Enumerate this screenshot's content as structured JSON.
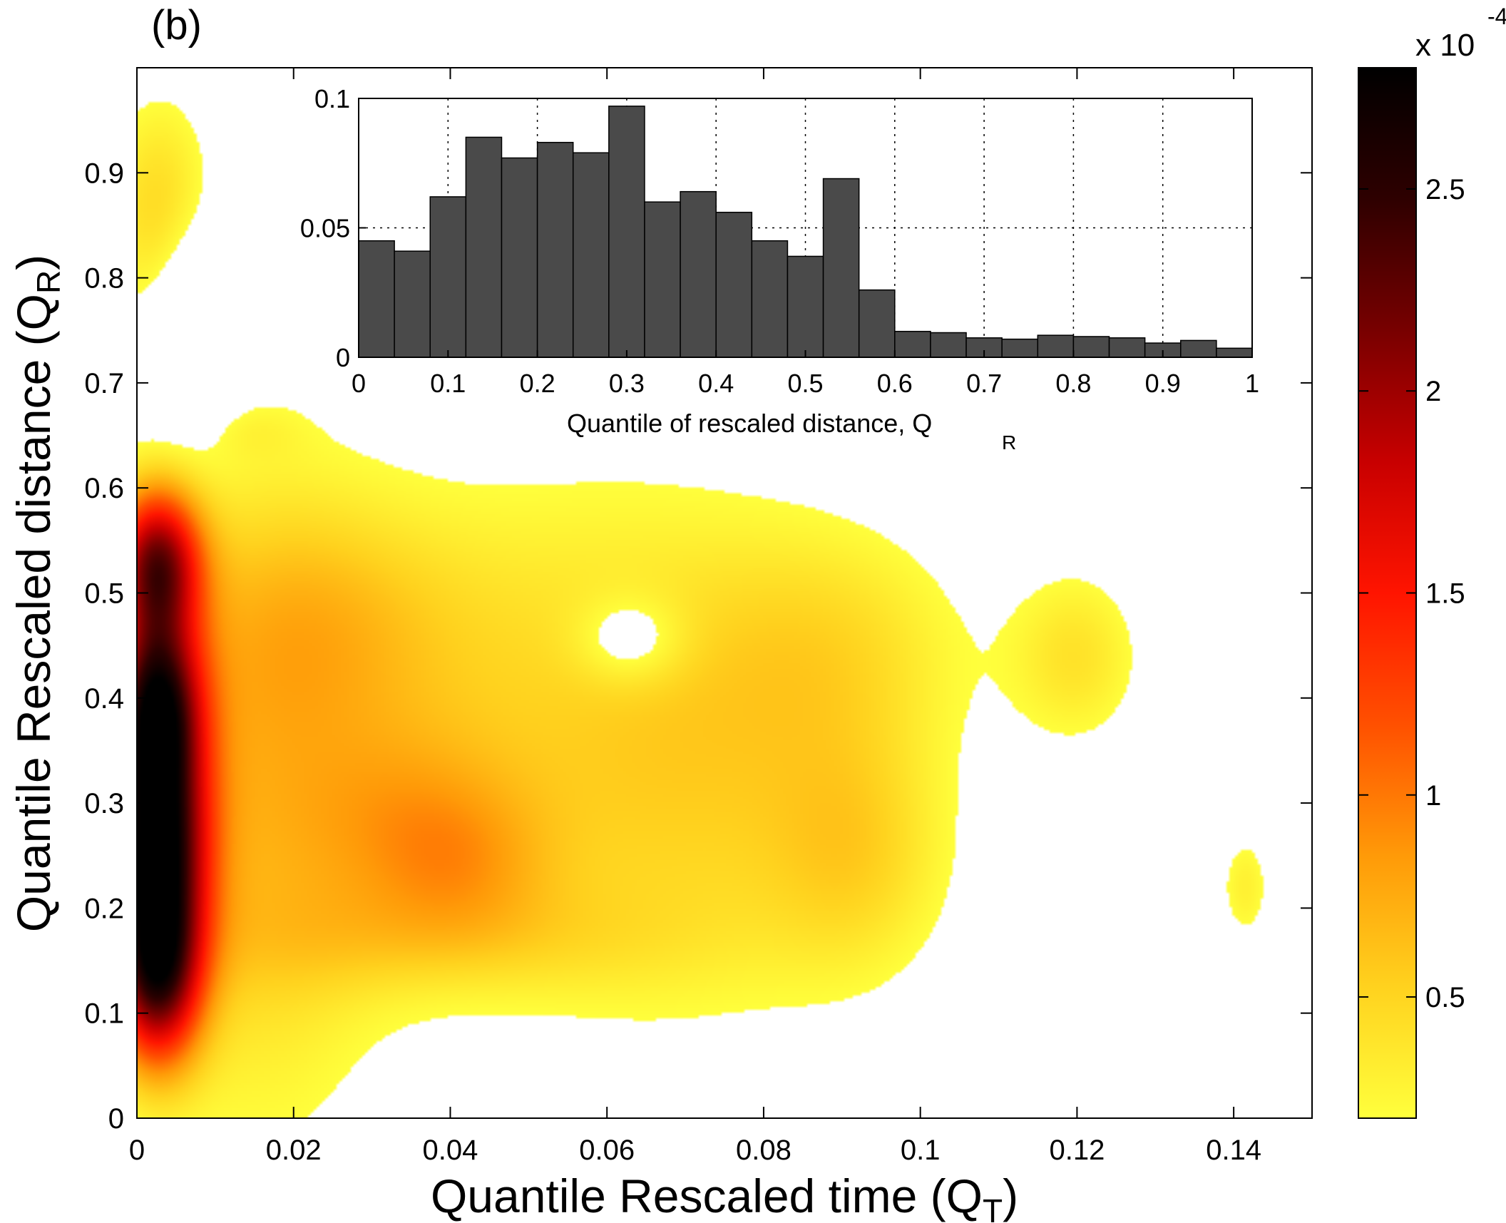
{
  "panel_label": "(b)",
  "chart_data": [
    {
      "type": "heatmap",
      "xlabel": "Quantile Rescaled time (Q",
      "xlabel_sub": "T",
      "xlabel_end": ")",
      "ylabel": "Quantile Rescaled distance (Q",
      "ylabel_sub": "R",
      "ylabel_end": ")",
      "xlim": [
        0,
        0.15
      ],
      "ylim": [
        0,
        1
      ],
      "xticks": [
        0,
        0.02,
        0.04,
        0.06,
        0.08,
        0.1,
        0.12,
        0.14
      ],
      "xtick_labels": [
        "0",
        "0.02",
        "0.04",
        "0.06",
        "0.08",
        "0.1",
        "0.12",
        "0.14"
      ],
      "yticks": [
        0,
        0.1,
        0.2,
        0.3,
        0.4,
        0.5,
        0.6,
        0.7,
        0.8,
        0.9
      ],
      "ytick_labels": [
        "0",
        "0.1",
        "0.2",
        "0.3",
        "0.4",
        "0.5",
        "0.6",
        "0.7",
        "0.8",
        "0.9"
      ],
      "colorbar": {
        "range": [
          0.2,
          2.8
        ],
        "ticks": [
          0.5,
          1,
          1.5,
          2,
          2.5
        ],
        "tick_labels": [
          "0.5",
          "1",
          "1.5",
          "2",
          "2.5"
        ],
        "multiplier": "x 10",
        "exponent": "-4",
        "threshold": 0.2,
        "colormap": [
          "#ffff3c",
          "#ffd21e",
          "#ff9a08",
          "#ff5000",
          "#ff1400",
          "#c80000",
          "#780000",
          "#2e0000",
          "#000000"
        ]
      },
      "background_color": "#ffffff",
      "density_peaks": [
        {
          "x": 0.0025,
          "y": 0.26,
          "sx": 0.0045,
          "sy": 0.09,
          "a": 2.6
        },
        {
          "x": 0.0025,
          "y": 0.13,
          "sx": 0.004,
          "sy": 0.06,
          "a": 1.6
        },
        {
          "x": 0.0025,
          "y": 0.4,
          "sx": 0.004,
          "sy": 0.06,
          "a": 1.8
        },
        {
          "x": 0.0025,
          "y": 0.53,
          "sx": 0.004,
          "sy": 0.05,
          "a": 1.9
        },
        {
          "x": 0.003,
          "y": 0.86,
          "sx": 0.005,
          "sy": 0.08,
          "a": 0.5
        },
        {
          "x": 0.015,
          "y": 0.3,
          "sx": 0.012,
          "sy": 0.22,
          "a": 0.55
        },
        {
          "x": 0.035,
          "y": 0.28,
          "sx": 0.01,
          "sy": 0.07,
          "a": 0.42
        },
        {
          "x": 0.042,
          "y": 0.24,
          "sx": 0.008,
          "sy": 0.05,
          "a": 0.3
        },
        {
          "x": 0.025,
          "y": 0.47,
          "sx": 0.014,
          "sy": 0.08,
          "a": 0.35
        },
        {
          "x": 0.055,
          "y": 0.38,
          "sx": 0.022,
          "sy": 0.18,
          "a": 0.34
        },
        {
          "x": 0.075,
          "y": 0.32,
          "sx": 0.018,
          "sy": 0.16,
          "a": 0.3
        },
        {
          "x": 0.092,
          "y": 0.25,
          "sx": 0.008,
          "sy": 0.08,
          "a": 0.33
        },
        {
          "x": 0.09,
          "y": 0.45,
          "sx": 0.012,
          "sy": 0.08,
          "a": 0.27
        },
        {
          "x": 0.04,
          "y": 0.17,
          "sx": 0.02,
          "sy": 0.04,
          "a": 0.25
        },
        {
          "x": 0.12,
          "y": 0.44,
          "sx": 0.006,
          "sy": 0.06,
          "a": 0.38
        },
        {
          "x": 0.1415,
          "y": 0.22,
          "sx": 0.0025,
          "sy": 0.04,
          "a": 0.3
        },
        {
          "x": 0.0145,
          "y": 0.655,
          "sx": 0.005,
          "sy": 0.02,
          "a": 0.12
        }
      ],
      "holes": [
        {
          "x": 0.063,
          "y": 0.455,
          "sx": 0.005,
          "sy": 0.03,
          "a": 0.38
        },
        {
          "x": 0.007,
          "y": 0.76,
          "sx": 0.004,
          "sy": 0.07,
          "a": 0.45
        }
      ]
    },
    {
      "type": "bar",
      "inset": true,
      "xlabel": "Quantile of rescaled distance, Q",
      "xlabel_sub": "R",
      "xlim": [
        0,
        1
      ],
      "ylim": [
        0,
        0.1
      ],
      "grid": true,
      "bar_color": "#4a4a4a",
      "xticks": [
        0,
        0.1,
        0.2,
        0.3,
        0.4,
        0.5,
        0.6,
        0.7,
        0.8,
        0.9,
        1
      ],
      "xtick_labels": [
        "0",
        "0.1",
        "0.2",
        "0.3",
        "0.4",
        "0.5",
        "0.6",
        "0.7",
        "0.8",
        "0.9",
        "1"
      ],
      "yticks": [
        0,
        0.05,
        0.1
      ],
      "ytick_labels": [
        "0",
        "0.05",
        "0.1"
      ],
      "bin_width": 0.04,
      "bins": [
        0,
        0.04,
        0.08,
        0.12,
        0.16,
        0.2,
        0.24,
        0.28,
        0.32,
        0.36,
        0.4,
        0.44,
        0.48,
        0.52,
        0.56,
        0.6,
        0.64,
        0.68,
        0.72,
        0.76,
        0.8,
        0.84,
        0.88,
        0.92,
        0.96
      ],
      "values": [
        0.045,
        0.041,
        0.062,
        0.085,
        0.077,
        0.083,
        0.079,
        0.097,
        0.06,
        0.064,
        0.056,
        0.045,
        0.039,
        0.069,
        0.026,
        0.01,
        0.0095,
        0.0075,
        0.007,
        0.0085,
        0.008,
        0.0075,
        0.0055,
        0.0065,
        0.0035
      ]
    }
  ]
}
